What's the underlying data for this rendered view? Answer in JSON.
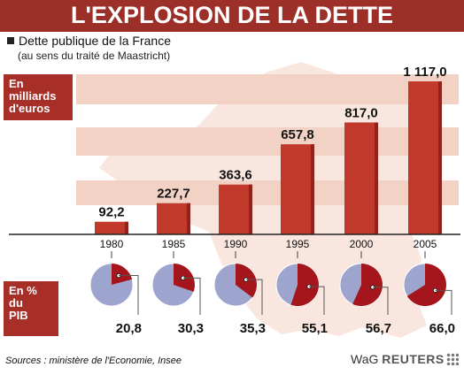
{
  "header": {
    "title": "L'EXPLOSION DE LA DETTE",
    "subtitle": "Dette publique de la France",
    "subtitle_note": "(au sens du traité de Maastricht)"
  },
  "unit_top": [
    "En",
    "milliards",
    "d'euros"
  ],
  "unit_bottom": [
    "En %",
    "du",
    "PIB"
  ],
  "footer": {
    "sources": "Sources : ministère de l'Economie, Insee",
    "brand_prefix": "WaG",
    "brand_name": "REUTERS"
  },
  "colors": {
    "header": "#9d2f29",
    "bar": "#c0392b",
    "pie_share": "#a5151c",
    "pie_rest": "#9da5cf",
    "stripe": "#f3d2c6",
    "map": "#f9e7df"
  },
  "chart_data": [
    {
      "type": "bar",
      "categories": [
        "1980",
        "1985",
        "1990",
        "1995",
        "2000",
        "2005"
      ],
      "values": [
        92.2,
        227.7,
        363.6,
        657.8,
        817.0,
        1117.0
      ],
      "labels": [
        "92,2",
        "227,7",
        "363,6",
        "657,8",
        "817,0",
        "1 117,0"
      ],
      "ylim": [
        0,
        1117.0
      ]
    },
    {
      "type": "pie",
      "categories": [
        "1980",
        "1985",
        "1990",
        "1995",
        "2000",
        "2005"
      ],
      "values": [
        20.8,
        30.3,
        35.3,
        55.1,
        56.7,
        66.0
      ],
      "labels": [
        "20,8",
        "30,3",
        "35,3",
        "55,1",
        "56,7",
        "66,0"
      ]
    }
  ]
}
